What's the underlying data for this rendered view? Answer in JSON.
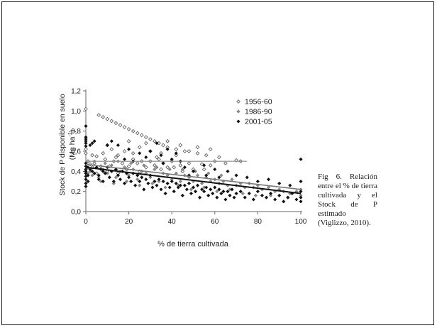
{
  "caption": "Fig 6. Relación entre el % de tierra cultivada y el Stock de P estimado (Viglizzo, 2010).",
  "chart_data": {
    "type": "scatter",
    "xlabel": "% de tierra cultivada",
    "ylabel_line1": "Stock de P disponible en suelo",
    "ylabel_line2": "(Mg ha",
    "ylabel_sup": "-1",
    "ylabel_close": ")",
    "xlim": [
      0,
      100
    ],
    "ylim": [
      0,
      1.2
    ],
    "x_ticks": [
      0,
      20,
      40,
      60,
      80,
      100
    ],
    "x_tick_labels": [
      "0",
      "20",
      "40",
      "60",
      "80",
      "100"
    ],
    "y_ticks": [
      0,
      0.2,
      0.4,
      0.6,
      0.8,
      1.0,
      1.2
    ],
    "y_tick_labels": [
      "0,0",
      "0,2",
      "0,4",
      "0,6",
      "0,8",
      "1,0",
      "1,2"
    ],
    "grid": false,
    "legend_position": "top-right",
    "series": [
      {
        "name": "1956-60",
        "marker": "open-diamond",
        "color": "#555555",
        "trend": [
          [
            0,
            0.5
          ],
          [
            75,
            0.5
          ]
        ],
        "points": [
          [
            0,
            1.02
          ],
          [
            0,
            0.62
          ],
          [
            0,
            0.58
          ],
          [
            1,
            0.5
          ],
          [
            2,
            0.47
          ],
          [
            3,
            0.44
          ],
          [
            4,
            0.48
          ],
          [
            5,
            0.55
          ],
          [
            6,
            0.96
          ],
          [
            7,
            0.45
          ],
          [
            8,
            0.94
          ],
          [
            9,
            0.52
          ],
          [
            10,
            0.92
          ],
          [
            11,
            0.45
          ],
          [
            12,
            0.9
          ],
          [
            13,
            0.5
          ],
          [
            14,
            0.88
          ],
          [
            15,
            0.56
          ],
          [
            16,
            0.86
          ],
          [
            17,
            0.48
          ],
          [
            18,
            0.84
          ],
          [
            19,
            0.42
          ],
          [
            20,
            0.45
          ],
          [
            20,
            0.82
          ],
          [
            22,
            0.8
          ],
          [
            22,
            0.52
          ],
          [
            24,
            0.48
          ],
          [
            24,
            0.78
          ],
          [
            26,
            0.76
          ],
          [
            26,
            0.5
          ],
          [
            28,
            0.44
          ],
          [
            28,
            0.74
          ],
          [
            30,
            0.72
          ],
          [
            30,
            0.5
          ],
          [
            32,
            0.46
          ],
          [
            32,
            0.7
          ],
          [
            34,
            0.68
          ],
          [
            34,
            0.52
          ],
          [
            36,
            0.48
          ],
          [
            36,
            0.66
          ],
          [
            38,
            0.64
          ],
          [
            38,
            0.44
          ],
          [
            40,
            0.5
          ],
          [
            42,
            0.62
          ],
          [
            44,
            0.46
          ],
          [
            46,
            0.6
          ],
          [
            48,
            0.48
          ],
          [
            50,
            0.42
          ],
          [
            52,
            0.58
          ],
          [
            54,
            0.47
          ],
          [
            56,
            0.56
          ],
          [
            58,
            0.46
          ],
          [
            60,
            0.5
          ],
          [
            62,
            0.54
          ],
          [
            65,
            0.48
          ],
          [
            70,
            0.51
          ],
          [
            72,
            0.5
          ],
          [
            8,
            0.58
          ],
          [
            12,
            0.62
          ],
          [
            18,
            0.6
          ],
          [
            25,
            0.64
          ],
          [
            30,
            0.6
          ],
          [
            35,
            0.58
          ],
          [
            42,
            0.56
          ],
          [
            48,
            0.6
          ],
          [
            5,
            0.38
          ],
          [
            10,
            0.4
          ],
          [
            15,
            0.38
          ],
          [
            25,
            0.4
          ],
          [
            35,
            0.42
          ],
          [
            45,
            0.4
          ],
          [
            55,
            0.42
          ],
          [
            10,
            0.66
          ],
          [
            20,
            0.7
          ],
          [
            28,
            0.68
          ],
          [
            38,
            0.7
          ],
          [
            44,
            0.66
          ],
          [
            52,
            0.64
          ],
          [
            58,
            0.62
          ],
          [
            3,
            0.56
          ],
          [
            14,
            0.54
          ],
          [
            22,
            0.58
          ],
          [
            33,
            0.54
          ],
          [
            41,
            0.44
          ]
        ]
      },
      {
        "name": "1986-90",
        "marker": "grey-diamond",
        "color": "#8c8c8c",
        "trend": [
          [
            0,
            0.47
          ],
          [
            100,
            0.22
          ]
        ],
        "points": [
          [
            0,
            0.42
          ],
          [
            1,
            0.38
          ],
          [
            2,
            0.4
          ],
          [
            3,
            0.36
          ],
          [
            5,
            0.44
          ],
          [
            6,
            0.34
          ],
          [
            8,
            0.42
          ],
          [
            10,
            0.38
          ],
          [
            12,
            0.46
          ],
          [
            14,
            0.34
          ],
          [
            16,
            0.4
          ],
          [
            18,
            0.44
          ],
          [
            20,
            0.36
          ],
          [
            22,
            0.42
          ],
          [
            24,
            0.32
          ],
          [
            26,
            0.4
          ],
          [
            28,
            0.38
          ],
          [
            30,
            0.34
          ],
          [
            32,
            0.42
          ],
          [
            34,
            0.3
          ],
          [
            36,
            0.38
          ],
          [
            38,
            0.36
          ],
          [
            40,
            0.32
          ],
          [
            42,
            0.38
          ],
          [
            44,
            0.3
          ],
          [
            46,
            0.36
          ],
          [
            48,
            0.34
          ],
          [
            50,
            0.3
          ],
          [
            52,
            0.36
          ],
          [
            54,
            0.28
          ],
          [
            56,
            0.34
          ],
          [
            58,
            0.3
          ],
          [
            60,
            0.32
          ],
          [
            62,
            0.28
          ],
          [
            64,
            0.3
          ],
          [
            66,
            0.26
          ],
          [
            68,
            0.32
          ],
          [
            70,
            0.26
          ],
          [
            72,
            0.28
          ],
          [
            74,
            0.24
          ],
          [
            76,
            0.28
          ],
          [
            78,
            0.24
          ],
          [
            80,
            0.26
          ],
          [
            82,
            0.22
          ],
          [
            85,
            0.24
          ],
          [
            88,
            0.2
          ],
          [
            90,
            0.22
          ],
          [
            92,
            0.2
          ],
          [
            95,
            0.18
          ],
          [
            98,
            0.2
          ],
          [
            100,
            0.22
          ],
          [
            4,
            0.5
          ],
          [
            9,
            0.48
          ],
          [
            15,
            0.5
          ],
          [
            21,
            0.48
          ],
          [
            27,
            0.46
          ],
          [
            33,
            0.44
          ],
          [
            39,
            0.42
          ],
          [
            45,
            0.42
          ],
          [
            51,
            0.4
          ],
          [
            57,
            0.38
          ],
          [
            63,
            0.36
          ],
          [
            7,
            0.3
          ],
          [
            13,
            0.28
          ],
          [
            19,
            0.3
          ],
          [
            25,
            0.26
          ],
          [
            31,
            0.28
          ],
          [
            37,
            0.24
          ],
          [
            43,
            0.26
          ],
          [
            49,
            0.22
          ],
          [
            55,
            0.24
          ],
          [
            61,
            0.2
          ],
          [
            67,
            0.22
          ],
          [
            73,
            0.18
          ],
          [
            79,
            0.16
          ],
          [
            86,
            0.16
          ],
          [
            94,
            0.14
          ],
          [
            100,
            0.16
          ]
        ]
      },
      {
        "name": "2001-05",
        "marker": "filled-diamond",
        "color": "#111111",
        "trend": [
          [
            0,
            0.44
          ],
          [
            100,
            0.18
          ]
        ],
        "points": [
          [
            0,
            0.45
          ],
          [
            0,
            0.42
          ],
          [
            0,
            0.4
          ],
          [
            0,
            0.38
          ],
          [
            0,
            0.35
          ],
          [
            0,
            0.32
          ],
          [
            0,
            0.28
          ],
          [
            0,
            0.25
          ],
          [
            0,
            0.48
          ],
          [
            0,
            0.65
          ],
          [
            0,
            0.68
          ],
          [
            0,
            0.7
          ],
          [
            0,
            0.72
          ],
          [
            0,
            0.85
          ],
          [
            0,
            0.74
          ],
          [
            1,
            0.44
          ],
          [
            1,
            0.36
          ],
          [
            1,
            0.3
          ],
          [
            2,
            0.42
          ],
          [
            2,
            0.66
          ],
          [
            3,
            0.4
          ],
          [
            3,
            0.68
          ],
          [
            4,
            0.38
          ],
          [
            4,
            0.7
          ],
          [
            5,
            0.44
          ],
          [
            6,
            0.36
          ],
          [
            6,
            0.32
          ],
          [
            7,
            0.42
          ],
          [
            8,
            0.4
          ],
          [
            8,
            0.3
          ],
          [
            9,
            0.38
          ],
          [
            10,
            0.44
          ],
          [
            10,
            0.66
          ],
          [
            11,
            0.34
          ],
          [
            12,
            0.4
          ],
          [
            12,
            0.7
          ],
          [
            13,
            0.3
          ],
          [
            14,
            0.42
          ],
          [
            15,
            0.36
          ],
          [
            16,
            0.32
          ],
          [
            17,
            0.4
          ],
          [
            18,
            0.28
          ],
          [
            19,
            0.38
          ],
          [
            20,
            0.34
          ],
          [
            21,
            0.3
          ],
          [
            22,
            0.38
          ],
          [
            23,
            0.26
          ],
          [
            24,
            0.36
          ],
          [
            25,
            0.3
          ],
          [
            26,
            0.34
          ],
          [
            27,
            0.22
          ],
          [
            28,
            0.32
          ],
          [
            29,
            0.28
          ],
          [
            30,
            0.36
          ],
          [
            31,
            0.24
          ],
          [
            32,
            0.3
          ],
          [
            33,
            0.26
          ],
          [
            34,
            0.32
          ],
          [
            35,
            0.22
          ],
          [
            36,
            0.3
          ],
          [
            37,
            0.18
          ],
          [
            38,
            0.28
          ],
          [
            39,
            0.24
          ],
          [
            40,
            0.3
          ],
          [
            41,
            0.2
          ],
          [
            42,
            0.28
          ],
          [
            43,
            0.24
          ],
          [
            44,
            0.26
          ],
          [
            45,
            0.16
          ],
          [
            46,
            0.26
          ],
          [
            47,
            0.22
          ],
          [
            48,
            0.28
          ],
          [
            49,
            0.18
          ],
          [
            50,
            0.24
          ],
          [
            51,
            0.2
          ],
          [
            52,
            0.26
          ],
          [
            53,
            0.14
          ],
          [
            54,
            0.22
          ],
          [
            55,
            0.2
          ],
          [
            56,
            0.24
          ],
          [
            57,
            0.16
          ],
          [
            58,
            0.22
          ],
          [
            59,
            0.18
          ],
          [
            60,
            0.24
          ],
          [
            61,
            0.14
          ],
          [
            62,
            0.22
          ],
          [
            63,
            0.18
          ],
          [
            64,
            0.2
          ],
          [
            65,
            0.12
          ],
          [
            66,
            0.2
          ],
          [
            67,
            0.16
          ],
          [
            68,
            0.22
          ],
          [
            69,
            0.14
          ],
          [
            70,
            0.18
          ],
          [
            72,
            0.2
          ],
          [
            74,
            0.14
          ],
          [
            76,
            0.18
          ],
          [
            78,
            0.12
          ],
          [
            80,
            0.2
          ],
          [
            82,
            0.16
          ],
          [
            84,
            0.14
          ],
          [
            86,
            0.18
          ],
          [
            88,
            0.12
          ],
          [
            90,
            0.16
          ],
          [
            92,
            0.1
          ],
          [
            94,
            0.14
          ],
          [
            96,
            0.18
          ],
          [
            98,
            0.12
          ],
          [
            100,
            0.14
          ],
          [
            100,
            0.52
          ],
          [
            100,
            0.3
          ],
          [
            100,
            0.2
          ],
          [
            100,
            0.1
          ],
          [
            15,
            0.66
          ],
          [
            20,
            0.62
          ],
          [
            25,
            0.58
          ],
          [
            30,
            0.6
          ],
          [
            33,
            0.68
          ],
          [
            35,
            0.56
          ],
          [
            38,
            0.62
          ],
          [
            40,
            0.52
          ],
          [
            42,
            0.58
          ],
          [
            28,
            0.54
          ],
          [
            22,
            0.5
          ],
          [
            18,
            0.52
          ],
          [
            44,
            0.5
          ],
          [
            36,
            0.48
          ],
          [
            46,
            0.44
          ],
          [
            55,
            0.46
          ],
          [
            60,
            0.42
          ],
          [
            66,
            0.4
          ],
          [
            70,
            0.36
          ],
          [
            75,
            0.34
          ],
          [
            80,
            0.3
          ],
          [
            85,
            0.32
          ],
          [
            90,
            0.28
          ],
          [
            95,
            0.26
          ],
          [
            56,
            0.36
          ],
          [
            62,
            0.34
          ],
          [
            50,
            0.4
          ],
          [
            48,
            0.36
          ]
        ]
      }
    ]
  }
}
